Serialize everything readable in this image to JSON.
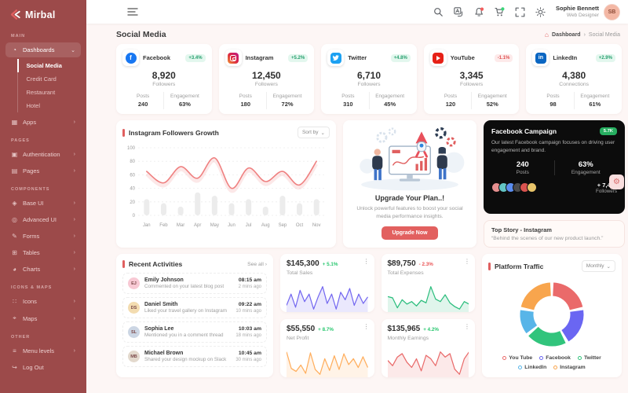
{
  "app": {
    "brand": "Mirbal"
  },
  "colors": {
    "accent": "#e05f5f",
    "sidebar": "#9c4a4a",
    "green": "#28c76f",
    "red": "#ea5455",
    "dark_card": "#0c0c0c"
  },
  "icons": {
    "chevron_right": "›",
    "chevron_down": "⌄",
    "kebab": "⋮",
    "home_glyph": "⌂",
    "gear_glyph": "⚙",
    "dashboards_glyph": "◔",
    "apps_glyph": "▦",
    "auth_glyph": "▣",
    "pages_glyph": "▤",
    "base_ui_glyph": "◈",
    "advanced_ui_glyph": "◎",
    "forms_glyph": "✎",
    "tables_glyph": "⊞",
    "charts_glyph": "◕",
    "icons_glyph": "∷",
    "maps_glyph": "⌖",
    "menu_glyph": "≡",
    "logout_glyph": "↪"
  },
  "sidebar": {
    "sec_main": "MAIN",
    "sec_pages": "PAGES",
    "sec_components": "COMPONENTS",
    "sec_iconsmaps": "ICONS & MAPS",
    "sec_other": "OTHER",
    "dashboards": "Dashboards",
    "social_media": "Social Media",
    "credit_card": "Credit Card",
    "restaurant": "Restaurant",
    "hotel": "Hotel",
    "apps": "Apps",
    "authentication": "Authentication",
    "pages": "Pages",
    "base_ui": "Base UI",
    "advanced_ui": "Advanced UI",
    "forms": "Forms",
    "tables": "Tables",
    "charts": "Charts",
    "icons": "Icons",
    "maps": "Maps",
    "menu_levels": "Menu levels",
    "log_out": "Log Out"
  },
  "header": {
    "user": {
      "name": "Sophie Bennett",
      "role": "Web Designer",
      "initials": "SB"
    }
  },
  "page": {
    "title": "Social Media",
    "breadcrumb_home": "Dashboard",
    "breadcrumb_sep": "›",
    "breadcrumb_current": "Social Media"
  },
  "labels": {
    "posts": "Posts",
    "engagement": "Engagement"
  },
  "social_cards": [
    {
      "name": "Facebook",
      "icon_label": "f",
      "badge": "+3.4%",
      "value": "8,920",
      "metric": "Followers",
      "posts": "240",
      "engagement": "63%"
    },
    {
      "name": "Instagram",
      "icon_label": "",
      "badge": "+5.2%",
      "value": "12,450",
      "metric": "Followers",
      "posts": "180",
      "engagement": "72%"
    },
    {
      "name": "Twitter",
      "icon_label": "",
      "badge": "+4.8%",
      "value": "6,710",
      "metric": "Followers",
      "posts": "310",
      "engagement": "45%"
    },
    {
      "name": "YouTube",
      "icon_label": "",
      "badge": "-1.1%",
      "value": "3,345",
      "metric": "Followers",
      "posts": "120",
      "engagement": "52%"
    },
    {
      "name": "LinkedIn",
      "icon_label": "in",
      "badge": "+2.9%",
      "value": "4,380",
      "metric": "Connections",
      "posts": "98",
      "engagement": "61%"
    }
  ],
  "growth": {
    "title": "Instagram Followers Growth",
    "sort_label": "Sort by"
  },
  "upgrade": {
    "title": "Upgrade Your Plan..!",
    "desc": "Unlock powerful features to boost your social media performance insights.",
    "button": "Upgrade Now"
  },
  "campaign": {
    "title": "Facebook Campaign",
    "badge": "5.7K",
    "desc": "Our latest Facebook campaign focuses on driving user engagement and brand.",
    "posts_value": "240",
    "posts_label": "Posts",
    "eng_value": "63%",
    "eng_label": "Engagement",
    "followers_value": "+ 7,458",
    "followers_label": "Followers"
  },
  "top_story": {
    "title": "Top Story - Instagram",
    "quote": "“Behind the scenes of our new product launch.”"
  },
  "activities": {
    "title": "Recent Activities",
    "see_all": "See all ›",
    "items": [
      {
        "name": "Emily Johnson",
        "desc": "Commented on your latest blog post",
        "time": "08:15 am",
        "ago": "2 mins ago",
        "initials": "EJ"
      },
      {
        "name": "Daniel Smith",
        "desc": "Liked your travel gallery on Instagram",
        "time": "09:22 am",
        "ago": "10 mins ago",
        "initials": "DS"
      },
      {
        "name": "Sophia Lee",
        "desc": "Mentioned you in a comment thread",
        "time": "10:03 am",
        "ago": "18 mins ago",
        "initials": "SL"
      },
      {
        "name": "Michael Brown",
        "desc": "Shared your design mockup on Slack",
        "time": "10:45 am",
        "ago": "30 mins ago",
        "initials": "MB"
      }
    ]
  },
  "minis": [
    {
      "amount": "$145,300",
      "delta": "+ 5.1%",
      "label": "Total Sales"
    },
    {
      "amount": "$89,750",
      "delta": "- 2.3%",
      "label": "Total Expenses"
    },
    {
      "amount": "$55,550",
      "delta": "+ 8.7%",
      "label": "Net Profit"
    },
    {
      "amount": "$135,965",
      "delta": "+ 4.2%",
      "label": "Monthly Earnings"
    }
  ],
  "traffic": {
    "title": "Platform Traffic",
    "filter": "Monthly",
    "legend": [
      "You Tube",
      "Facebook",
      "Twitter",
      "LinkedIn",
      "Instagram"
    ]
  },
  "chart_data": [
    {
      "id": "followers_growth",
      "type": "line",
      "title": "Instagram Followers Growth",
      "categories": [
        "Jan",
        "Feb",
        "Mar",
        "Apr",
        "May",
        "Jun",
        "Jul",
        "Aug",
        "Sep",
        "Oct",
        "Nov"
      ],
      "series": [
        {
          "name": "Followers",
          "type": "line",
          "color": "#ef8080",
          "values": [
            65,
            48,
            72,
            55,
            85,
            40,
            70,
            50,
            65,
            45,
            80
          ]
        },
        {
          "name": "Posts",
          "type": "bar",
          "color": "#ececec",
          "values": [
            24,
            18,
            13,
            34,
            29,
            18,
            24,
            13,
            29,
            18,
            24
          ]
        }
      ],
      "ylim": [
        0,
        100
      ],
      "yticks": [
        0,
        20,
        40,
        60,
        80,
        100
      ],
      "grid": true,
      "legend_position": "none"
    },
    {
      "id": "total_sales",
      "type": "area",
      "color": "#7367f0",
      "values": [
        46,
        58,
        44,
        62,
        50,
        58,
        42,
        55,
        66,
        48,
        58,
        42,
        60,
        52,
        64,
        46,
        58,
        48,
        55
      ]
    },
    {
      "id": "total_expenses",
      "type": "line",
      "color": "#2dbe7e",
      "values": [
        60,
        58,
        42,
        55,
        48,
        52,
        45,
        54,
        50,
        76,
        56,
        52,
        63,
        50,
        44,
        40,
        52,
        48
      ]
    },
    {
      "id": "net_profit",
      "type": "area",
      "color": "#ffae5d",
      "values": [
        72,
        38,
        32,
        45,
        28,
        70,
        36,
        26,
        58,
        34,
        64,
        36,
        68,
        46,
        58,
        40,
        62,
        40
      ]
    },
    {
      "id": "monthly_earnings",
      "type": "area",
      "color": "#e96a6a",
      "values": [
        52,
        46,
        56,
        60,
        50,
        44,
        54,
        40,
        58,
        54,
        46,
        62,
        56,
        60,
        42,
        36,
        54,
        62
      ]
    },
    {
      "id": "platform_traffic",
      "type": "pie",
      "donut": true,
      "title": "Platform Traffic",
      "labels": [
        "You Tube",
        "Facebook",
        "Twitter",
        "LinkedIn",
        "Instagram"
      ],
      "colors": [
        "#ea6a6a",
        "#6a66f2",
        "#31c47c",
        "#58b5e8",
        "#f8a54d"
      ],
      "values": [
        22,
        20,
        22,
        14,
        22
      ]
    }
  ]
}
